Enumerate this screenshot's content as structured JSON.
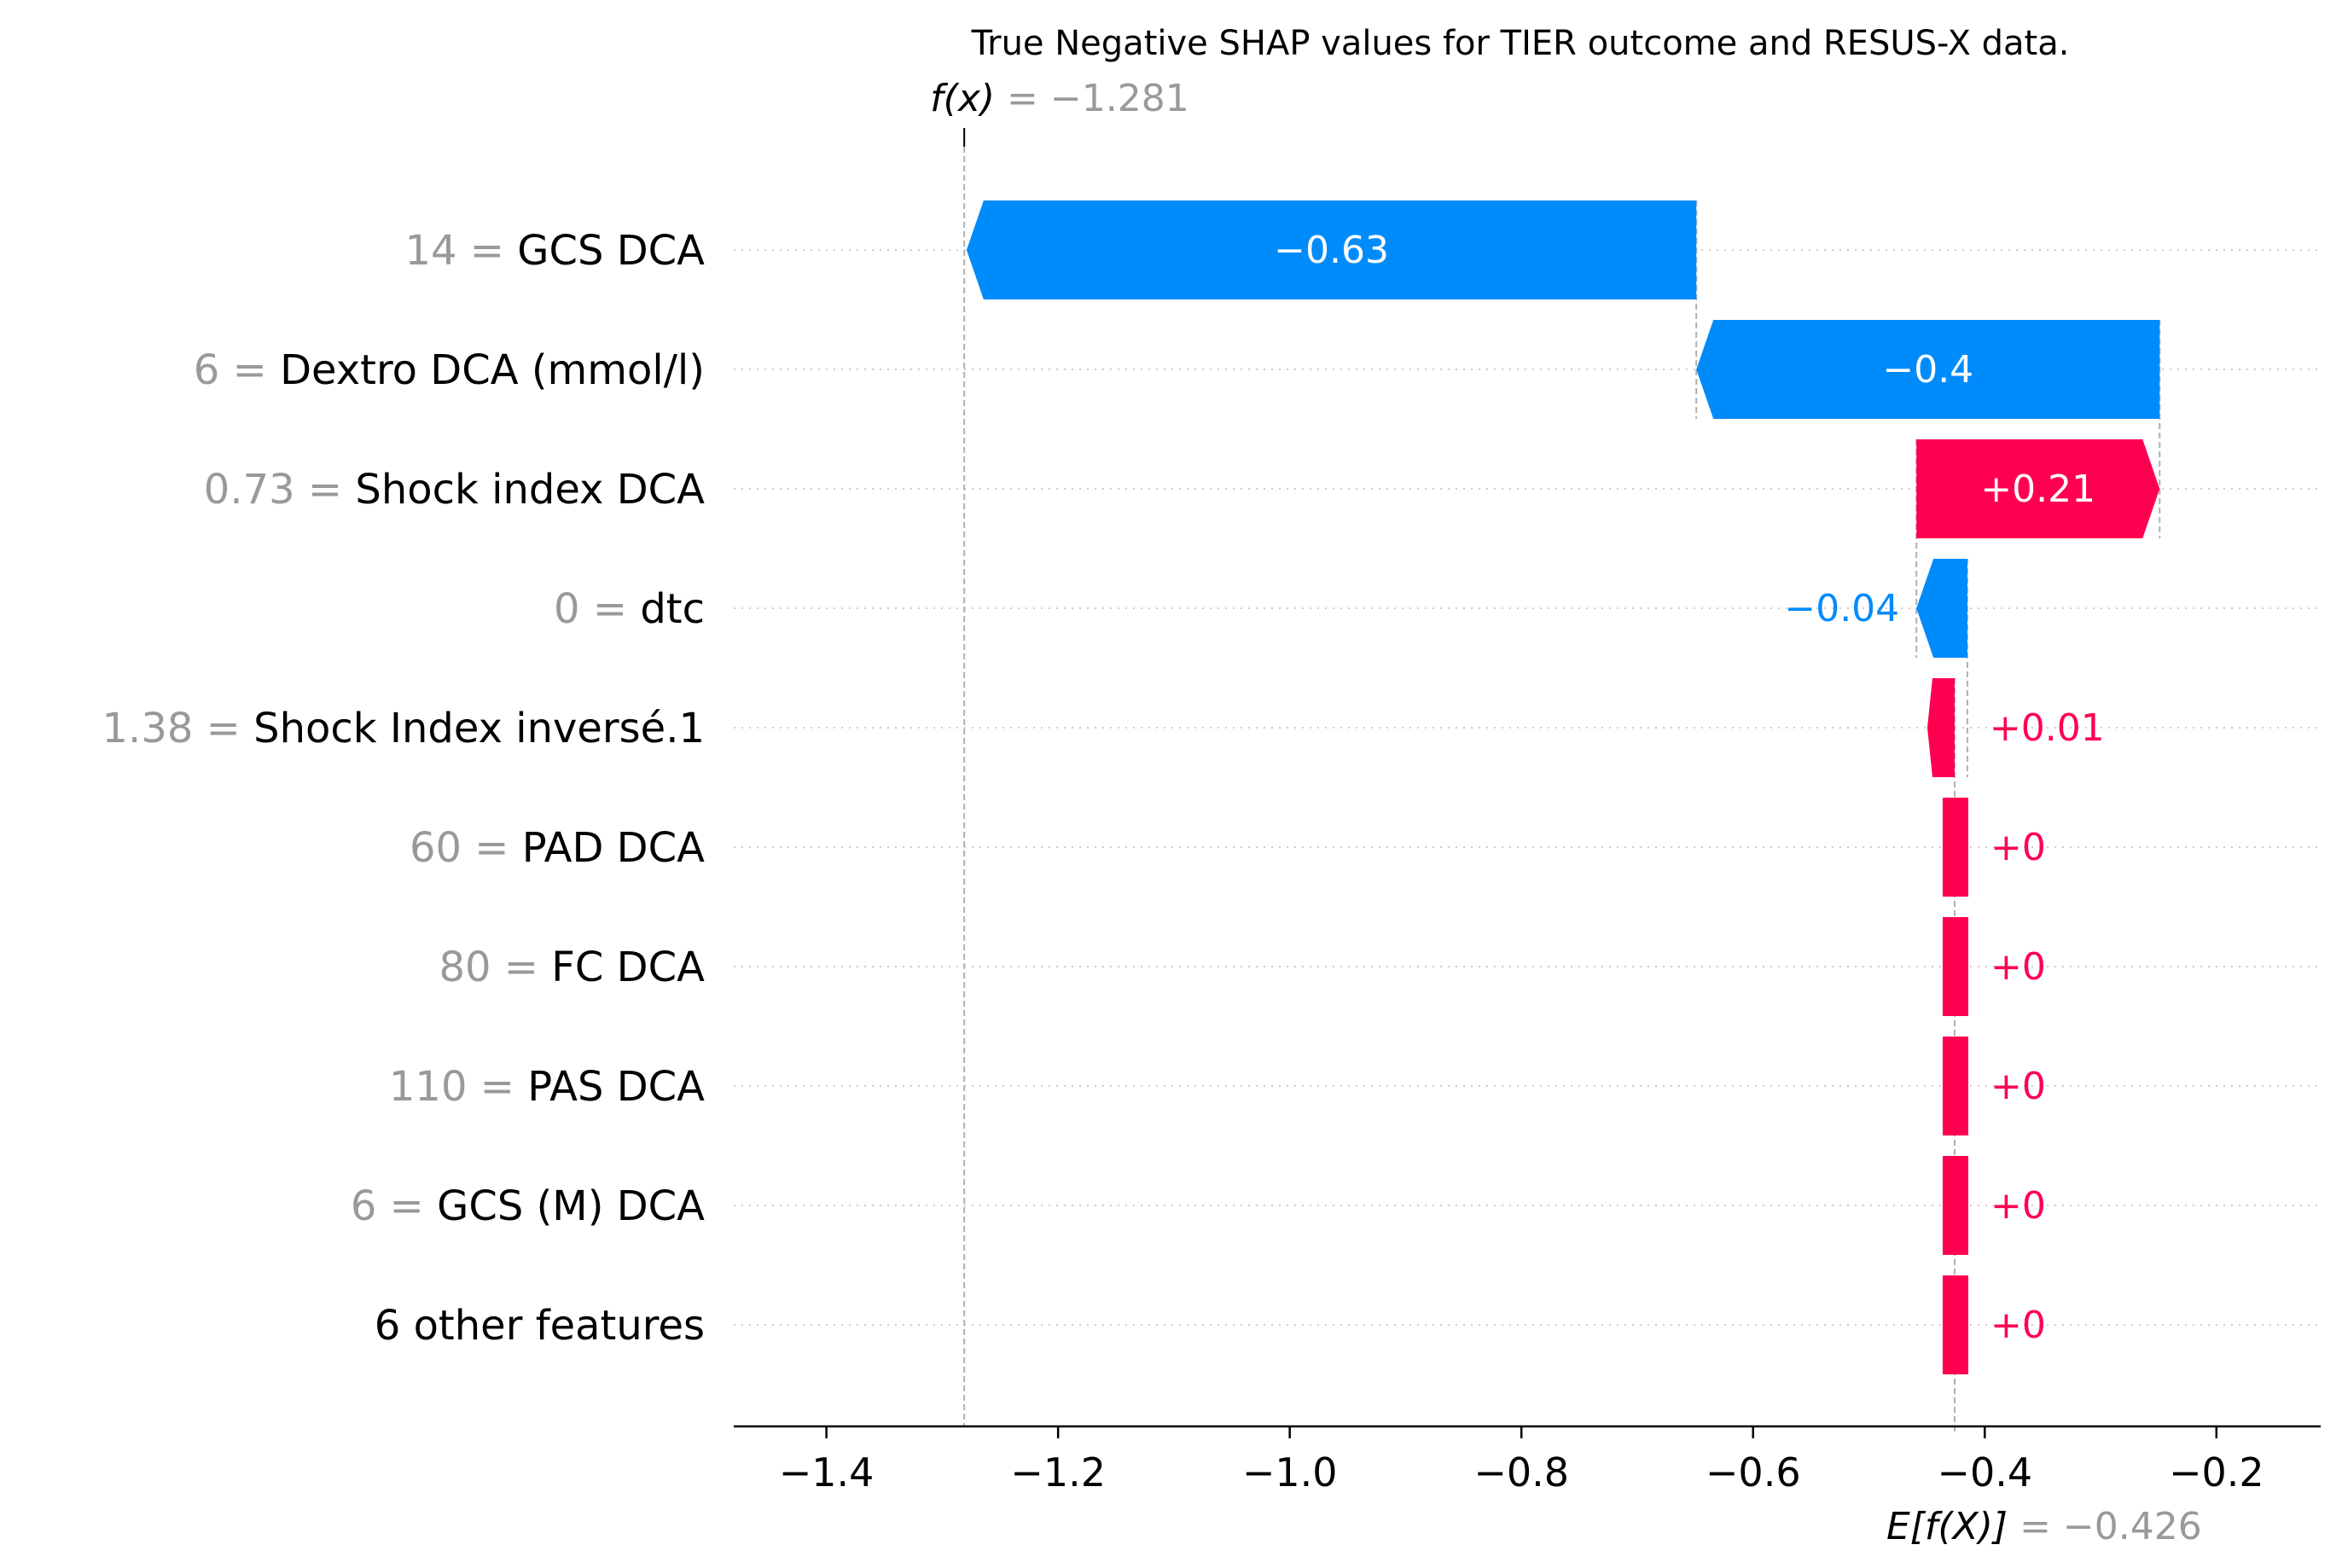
{
  "colors": {
    "positive": "#ff0051",
    "negative": "#008bfb",
    "value_gray": "#999999",
    "text": "#000000"
  },
  "chart_data": {
    "type": "waterfall",
    "title": "True Negative SHAP values for TIER outcome and RESUS-X data.",
    "base_value": -0.426,
    "output_value": -1.281,
    "fx_label": "f(x)",
    "fx_value_text": "= −1.281",
    "efx_label": "E[f(X)]",
    "efx_value_text": "= −0.426",
    "xlim": [
      -1.48,
      -0.11
    ],
    "xticks": [
      -1.4,
      -1.2,
      -1.0,
      -0.8,
      -0.6,
      -0.4,
      -0.2
    ],
    "xtick_labels": [
      "−1.4",
      "−1.2",
      "−1.0",
      "−0.8",
      "−0.6",
      "−0.4",
      "−0.2"
    ],
    "features": [
      {
        "value": "14",
        "name": "GCS DCA",
        "shap": -0.63,
        "label": "−0.63"
      },
      {
        "value": "6",
        "name": "Dextro DCA (mmol/l)",
        "shap": -0.4,
        "label": "−0.4"
      },
      {
        "value": "0.73",
        "name": "Shock index DCA",
        "shap": 0.21,
        "label": "+0.21"
      },
      {
        "value": "0",
        "name": "dtc",
        "shap": -0.044,
        "label": "−0.04"
      },
      {
        "value": "1.38",
        "name": "Shock Index inversé.1",
        "shap": 0.011,
        "label": "+0.01"
      },
      {
        "value": "60",
        "name": "PAD DCA",
        "shap": 0.0,
        "label": "+0"
      },
      {
        "value": "80",
        "name": "FC  DCA",
        "shap": 0.0,
        "label": "+0"
      },
      {
        "value": "110",
        "name": "PAS DCA",
        "shap": 0.0,
        "label": "+0"
      },
      {
        "value": "6",
        "name": "GCS (M) DCA",
        "shap": 0.0,
        "label": "+0"
      },
      {
        "value": "",
        "name": "6 other features",
        "shap": 0.0,
        "label": "+0"
      }
    ]
  }
}
